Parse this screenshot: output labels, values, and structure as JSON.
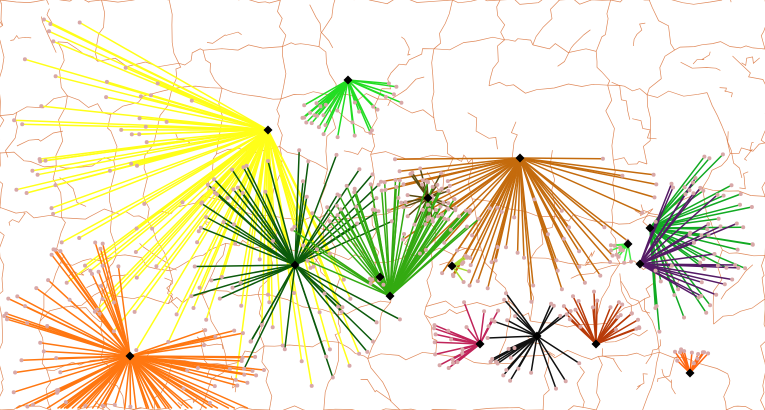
{
  "map": {
    "colors": {
      "background": "#ffffff",
      "boundaries": "#d9733c",
      "endpoint_dots": "#d8a8a8",
      "hub_marker": "#000000"
    },
    "hubs": [
      {
        "id": "yellow",
        "color": "#ffff19",
        "spokes": 95,
        "reach": 1.0
      },
      {
        "id": "bright-green",
        "color": "#22dd22",
        "spokes": 30,
        "reach": 0.55
      },
      {
        "id": "brown",
        "color": "#c46b0d",
        "spokes": 60,
        "reach": 0.85
      },
      {
        "id": "olive",
        "color": "#5a4a10",
        "spokes": 22,
        "reach": 0.45
      },
      {
        "id": "green-right",
        "color": "#11aa22",
        "spokes": 35,
        "reach": 0.7
      },
      {
        "id": "light-green",
        "color": "#44ee44",
        "spokes": 10,
        "reach": 0.35
      },
      {
        "id": "purple",
        "color": "#551a66",
        "spokes": 25,
        "reach": 0.75
      },
      {
        "id": "orange-left",
        "color": "#ff7711",
        "spokes": 95,
        "reach": 0.9
      },
      {
        "id": "dark-green",
        "color": "#0b5a0b",
        "spokes": 45,
        "reach": 0.8
      },
      {
        "id": "gold-small",
        "color": "#d9a020",
        "spokes": 6,
        "reach": 0.3
      },
      {
        "id": "yellow-green",
        "color": "#aadd33",
        "spokes": 8,
        "reach": 0.35
      },
      {
        "id": "mid-green",
        "color": "#33aa11",
        "spokes": 50,
        "reach": 0.8
      },
      {
        "id": "crimson",
        "color": "#c0245a",
        "spokes": 20,
        "reach": 0.55
      },
      {
        "id": "black",
        "color": "#111111",
        "spokes": 25,
        "reach": 0.6
      },
      {
        "id": "rust",
        "color": "#b83a08",
        "spokes": 22,
        "reach": 0.6
      },
      {
        "id": "orange-right",
        "color": "#ff6611",
        "spokes": 12,
        "reach": 0.45
      }
    ]
  }
}
